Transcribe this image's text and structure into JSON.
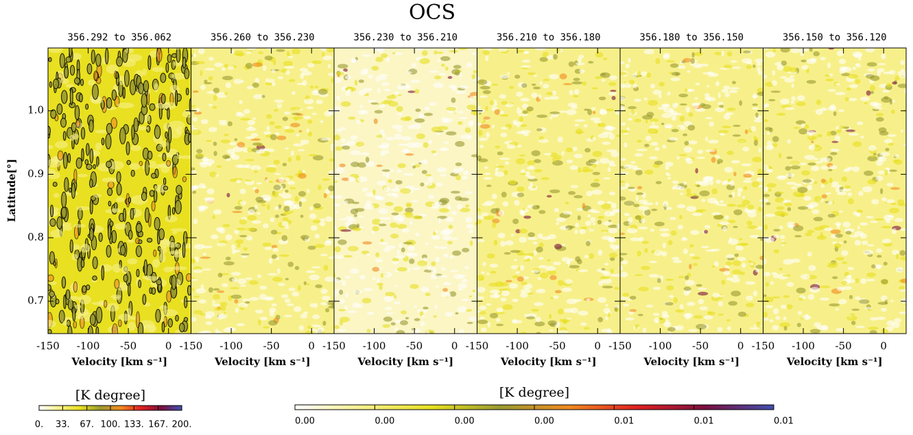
{
  "chart_data": {
    "type": "heatmap",
    "title": "OCS",
    "panel_titles": [
      "356.292 to 356.062",
      "356.260 to 356.230",
      "356.230 to 356.210",
      "356.210 to 356.180",
      "356.180 to 356.150",
      "356.150 to 356.120"
    ],
    "xlabel": "Velocity [km s⁻¹]",
    "ylabel": "Latitude[°]",
    "xlim": [
      -150,
      28
    ],
    "xticks": [
      -150,
      -100,
      -50,
      0
    ],
    "ylim": [
      0.649,
      1.099
    ],
    "yticks": [
      0.7,
      0.8,
      0.9,
      {
        "value": 1.0,
        "label": "1.0"
      }
    ],
    "colormap": [
      "#ffffff",
      "#f7f08a",
      "#e8e020",
      "#9a9a30",
      "#f08a20",
      "#e02020",
      "#7a1040",
      "#4050b0"
    ],
    "colorbars": [
      {
        "label": "[K degree]",
        "lim": [
          0,
          200
        ],
        "ticks": [
          {
            "value": 0,
            "label": "0."
          },
          {
            "value": 33,
            "label": "33."
          },
          {
            "value": 67,
            "label": "67."
          },
          {
            "value": 100,
            "label": "100."
          },
          {
            "value": 133,
            "label": "133."
          },
          {
            "value": 167,
            "label": "167."
          },
          {
            "value": 200,
            "label": "200."
          }
        ]
      },
      {
        "label": "[K degree]",
        "lim": [
          0,
          0.009
        ],
        "ticks": [
          {
            "value": 0,
            "label": "0.00"
          },
          {
            "value": 0.0015,
            "label": "0.00"
          },
          {
            "value": 0.003,
            "label": "0.00"
          },
          {
            "value": 0.0045,
            "label": "0.00"
          },
          {
            "value": 0.006,
            "label": "0.01"
          },
          {
            "value": 0.0075,
            "label": "0.01"
          },
          {
            "value": 0.009,
            "label": "0.01"
          }
        ]
      }
    ]
  }
}
